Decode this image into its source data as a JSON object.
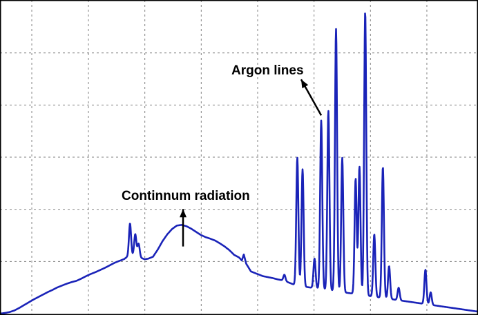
{
  "chart_data": {
    "type": "line",
    "title": "",
    "xlabel": "",
    "ylabel": "",
    "xlim": [
      0,
      100
    ],
    "ylim": [
      0,
      100
    ],
    "grid": true,
    "grid_x_ticks": [
      6.65,
      18.5,
      30.3,
      42.1,
      53.9,
      65.7,
      77.5,
      89.3
    ],
    "grid_y_ticks": [
      16.7,
      33.4,
      50.1,
      66.8,
      83.5
    ],
    "line_color": "#1a23b8",
    "background": "#ffffff",
    "frame_color": "#000000",
    "grid_color": "#808080",
    "series": [
      {
        "x": [
          0,
          1,
          2,
          3,
          4,
          5,
          6,
          7,
          8,
          9,
          10,
          11,
          12,
          13,
          14,
          15,
          16,
          17,
          18,
          19,
          20,
          21,
          22,
          23,
          24,
          25,
          26,
          26.7,
          27.2,
          27.7,
          28.3,
          28.9,
          29.6,
          30.3,
          31,
          32,
          33,
          34,
          35,
          36,
          37,
          38,
          39,
          40,
          41,
          42,
          43,
          44,
          45,
          46,
          47,
          48,
          49,
          50,
          50.6,
          51,
          51.5,
          52.5,
          54,
          55,
          56,
          57,
          58,
          59,
          60,
          61,
          62
        ],
        "y": [
          0,
          0.2,
          0.5,
          1,
          1.8,
          2.7,
          3.6,
          4.5,
          5.3,
          6.1,
          6.9,
          7.6,
          8.4,
          9,
          9.6,
          10.1,
          10.5,
          11.2,
          12,
          12.7,
          13.3,
          14,
          14.7,
          15.5,
          16.3,
          16.9,
          17.5,
          18.3,
          20,
          18.7,
          19.5,
          18.5,
          17.8,
          17.4,
          17.6,
          18.2,
          20.5,
          23.2,
          25.4,
          27.1,
          28.2,
          28.4,
          28,
          27.2,
          26.2,
          25.2,
          24.5,
          24,
          23.4,
          22.5,
          21.5,
          20.3,
          18.8,
          18,
          17,
          19,
          16,
          13.5,
          12.6,
          12,
          11.7,
          11.4,
          11,
          10.7,
          10.2,
          9.6,
          9
        ]
      }
    ],
    "lines": [
      {
        "x": 27.2,
        "height": 9
      },
      {
        "x": 28.3,
        "height": 6
      },
      {
        "x": 29.0,
        "height": 4
      },
      {
        "x": 59.5,
        "height": 2
      },
      {
        "x": 62.2,
        "height": 41
      },
      {
        "x": 63.3,
        "height": 37.5
      },
      {
        "x": 65.8,
        "height": 9.5
      },
      {
        "x": 67.2,
        "height": 54
      },
      {
        "x": 68.7,
        "height": 57.5
      },
      {
        "x": 70.3,
        "height": 84
      },
      {
        "x": 71.6,
        "height": 43
      },
      {
        "x": 74.4,
        "height": 37
      },
      {
        "x": 75.2,
        "height": 41
      },
      {
        "x": 76.4,
        "height": 91
      },
      {
        "x": 78.3,
        "height": 20
      },
      {
        "x": 80.1,
        "height": 42
      },
      {
        "x": 81.4,
        "height": 10.5
      },
      {
        "x": 83.4,
        "height": 4
      },
      {
        "x": 89.0,
        "height": 11
      },
      {
        "x": 90.1,
        "height": 4
      }
    ],
    "annotations": [
      {
        "text": "Continnum radiation",
        "arrow_from": [
          38.3,
          21.5
        ],
        "arrow_to": [
          38.3,
          33.5
        ]
      },
      {
        "text": "Argon lines",
        "arrow_from": [
          67.2,
          63.5
        ],
        "arrow_to": [
          63.0,
          75
        ]
      }
    ]
  }
}
